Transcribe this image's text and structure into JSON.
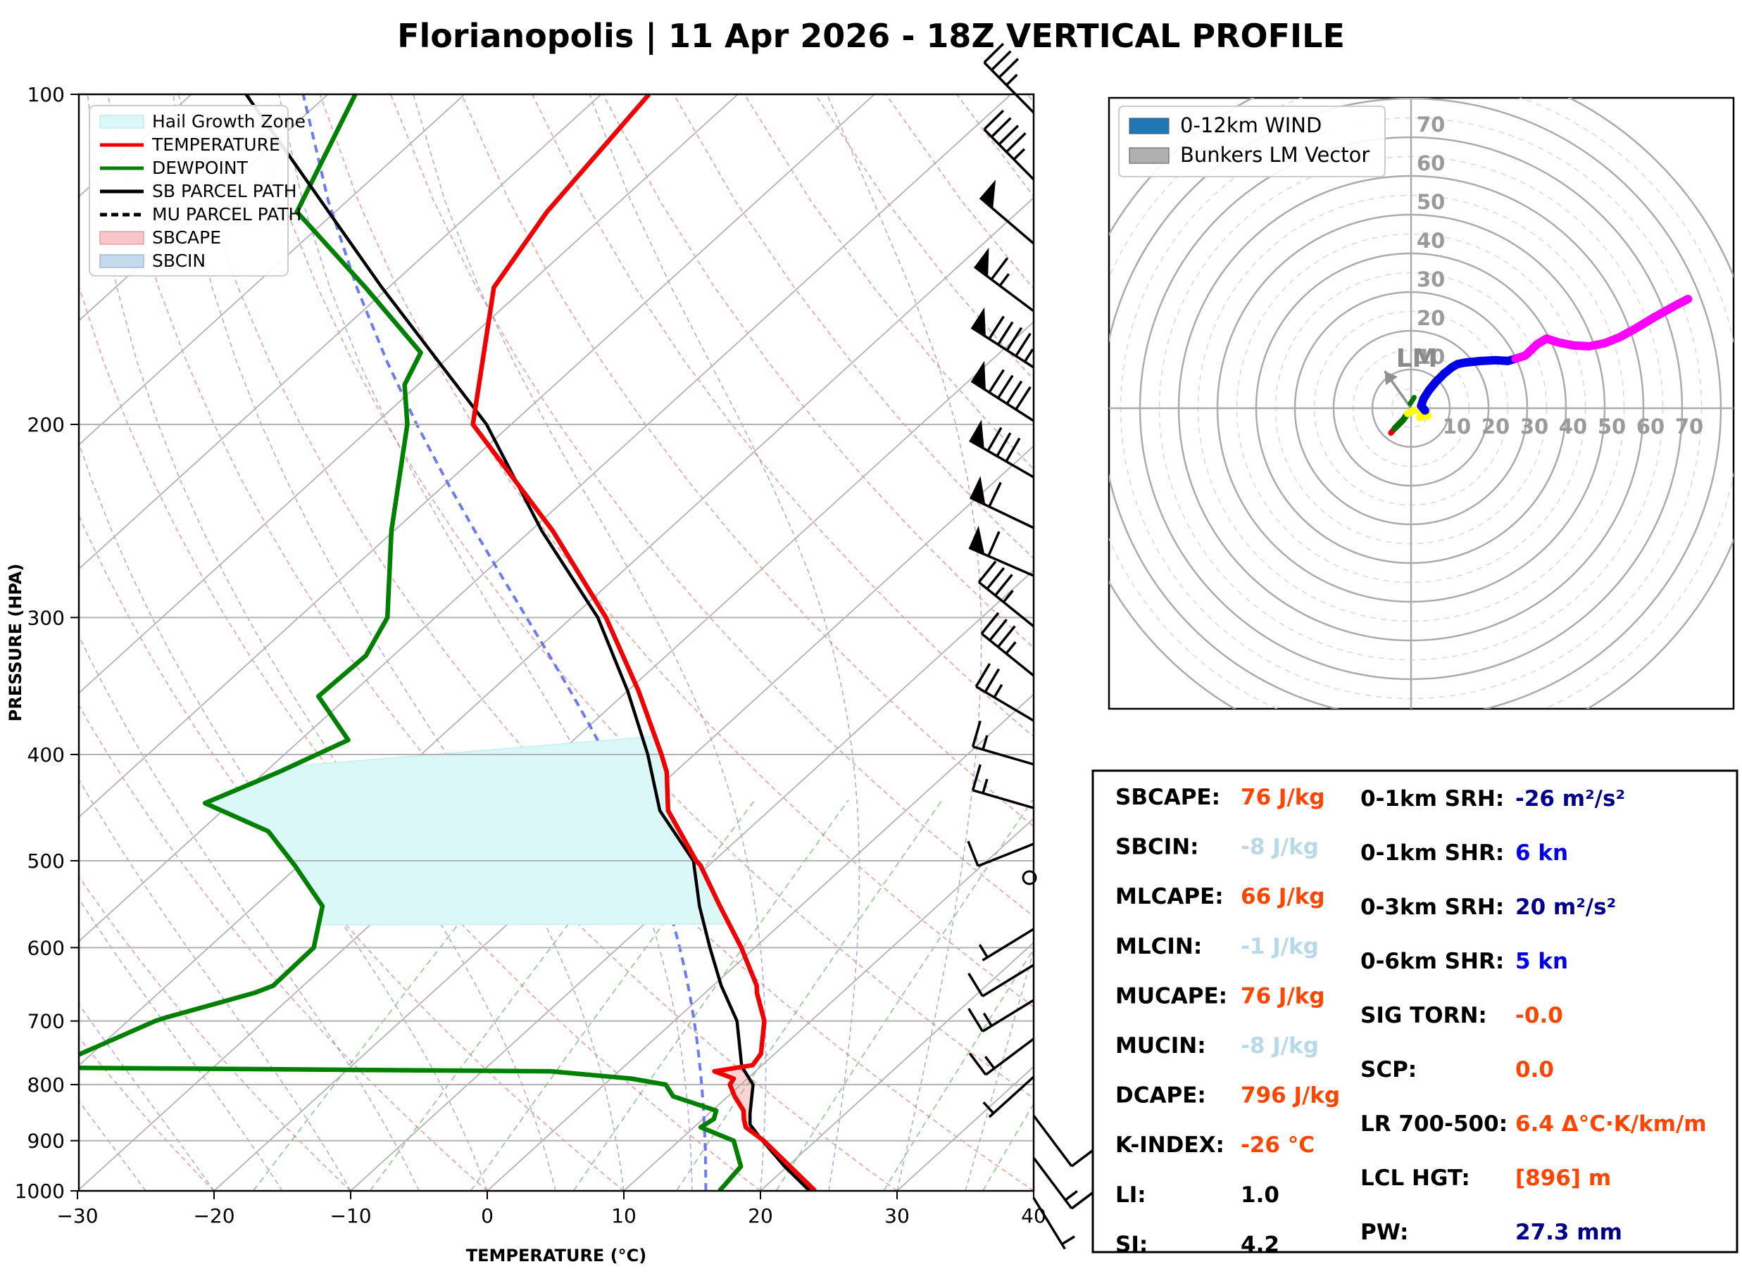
{
  "title": "Florianopolis | 11 Apr 2026 - 18Z VERTICAL PROFILE",
  "chart_data": {
    "type": "skewt-logp-sounding",
    "skewt": {
      "xlabel": "TEMPERATURE (°C)",
      "ylabel": "PRESSURE (HPA)",
      "x_ticks": [
        "−30",
        "−20",
        "−10",
        "0",
        "10",
        "20",
        "30",
        "40"
      ],
      "x_tick_values": [
        -30,
        -20,
        -10,
        0,
        10,
        20,
        30,
        40
      ],
      "p_ticks": [
        100,
        200,
        300,
        400,
        500,
        600,
        700,
        800,
        900,
        1000
      ],
      "xlim": [
        -30,
        40
      ],
      "plim": [
        100,
        1000
      ],
      "legend": [
        {
          "label": "Hail Growth Zone",
          "type": "patch",
          "color": "#dbf8f9",
          "edge": "#bfeef0"
        },
        {
          "label": "TEMPERATURE",
          "type": "line",
          "color": "#f00000",
          "dash": false
        },
        {
          "label": "DEWPOINT",
          "type": "line",
          "color": "#008000",
          "dash": false
        },
        {
          "label": "SB PARCEL PATH",
          "type": "line",
          "color": "#000000",
          "dash": false
        },
        {
          "label": "MU PARCEL PATH",
          "type": "line",
          "color": "#000000",
          "dash": true
        },
        {
          "label": "SBCAPE",
          "type": "patch",
          "color": "#f6c6c9",
          "edge": "#e8a0a5"
        },
        {
          "label": "SBCIN",
          "type": "patch",
          "color": "#c5d8ec",
          "edge": "#9fbcd8"
        }
      ],
      "temperature_c": [
        [
          1000,
          24
        ],
        [
          950,
          20.2
        ],
        [
          900,
          16.2
        ],
        [
          875,
          13.8
        ],
        [
          860,
          13.0
        ],
        [
          845,
          12.3
        ],
        [
          820,
          10.5
        ],
        [
          800,
          9.2
        ],
        [
          790,
          9.0
        ],
        [
          778,
          7.0
        ],
        [
          768,
          9.3
        ],
        [
          750,
          9.0
        ],
        [
          700,
          6.6
        ],
        [
          660,
          3.8
        ],
        [
          650,
          3.2
        ],
        [
          600,
          -1.0
        ],
        [
          550,
          -5.9
        ],
        [
          505,
          -10.6
        ],
        [
          500,
          -11.3
        ],
        [
          450,
          -17.4
        ],
        [
          415,
          -20.6
        ],
        [
          400,
          -22.4
        ],
        [
          350,
          -29.2
        ],
        [
          300,
          -37.5
        ],
        [
          250,
          -48.4
        ],
        [
          200,
          -62.8
        ],
        [
          150,
          -72.3
        ],
        [
          128,
          -74.5
        ],
        [
          100,
          -76.5
        ]
      ],
      "dewpoint_c": [
        [
          1000,
          17
        ],
        [
          950,
          16.6
        ],
        [
          900,
          14.0
        ],
        [
          875,
          10.5
        ],
        [
          860,
          10.8
        ],
        [
          845,
          10.3
        ],
        [
          820,
          6.0
        ],
        [
          800,
          4.5
        ],
        [
          790,
          1.5
        ],
        [
          778,
          -5.0
        ],
        [
          772,
          -42.0
        ],
        [
          700,
          -38.0
        ],
        [
          695,
          -37.5
        ],
        [
          660,
          -33.0
        ],
        [
          650,
          -32.2
        ],
        [
          600,
          -32.3
        ],
        [
          550,
          -35.0
        ],
        [
          505,
          -40.3
        ],
        [
          470,
          -45.0
        ],
        [
          443,
          -51.9
        ],
        [
          415,
          -49.0
        ],
        [
          388,
          -46.5
        ],
        [
          354,
          -52.2
        ],
        [
          325,
          -52.0
        ],
        [
          300,
          -53.5
        ],
        [
          250,
          -60.2
        ],
        [
          200,
          -67.6
        ],
        [
          184,
          -71.0
        ],
        [
          172,
          -72.4
        ],
        [
          150,
          -81.7
        ],
        [
          128,
          -92.8
        ],
        [
          100,
          -98.0
        ]
      ],
      "sb_parcel_c": [
        [
          1000,
          23.6
        ],
        [
          950,
          19.8
        ],
        [
          900,
          16.1
        ],
        [
          870,
          13.9
        ],
        [
          850,
          13.0
        ],
        [
          800,
          10.9
        ],
        [
          770,
          8.6
        ],
        [
          700,
          4.6
        ],
        [
          650,
          0.6
        ],
        [
          600,
          -3.3
        ],
        [
          550,
          -7.4
        ],
        [
          500,
          -11.5
        ],
        [
          450,
          -18.0
        ],
        [
          400,
          -23.4
        ],
        [
          350,
          -30.0
        ],
        [
          300,
          -38.1
        ],
        [
          250,
          -49.2
        ],
        [
          200,
          -61.8
        ],
        [
          150,
          -80.5
        ],
        [
          100,
          -106.0
        ]
      ],
      "hail_zone": {
        "p_bottom": 572,
        "p_top_left": 405,
        "p_top_right": 385
      },
      "cape_zone": {
        "p_top": 772,
        "p_bottom": 878
      },
      "special_moist_adiabat_T0": 16,
      "wind_barbs": [
        {
          "p": 104,
          "y": 160,
          "spd": 35,
          "dx": -0.7,
          "dy": -0.71,
          "len": 100,
          "pen": 0,
          "full": 3,
          "half": 1,
          "flip": 0,
          "calm": false
        },
        {
          "p": 120,
          "y": 255,
          "spd": 45,
          "dx": -0.7,
          "dy": -0.71,
          "len": 100,
          "pen": 0,
          "full": 4,
          "half": 1,
          "flip": 0,
          "calm": false
        },
        {
          "p": 137,
          "y": 346,
          "spd": 50,
          "dx": -0.76,
          "dy": -0.65,
          "len": 100,
          "pen": 1,
          "full": 0,
          "half": 0,
          "flip": 0,
          "calm": false
        },
        {
          "p": 157,
          "y": 442,
          "spd": 65,
          "dx": -0.8,
          "dy": -0.6,
          "len": 105,
          "pen": 1,
          "full": 1,
          "half": 1,
          "flip": 0,
          "calm": false
        },
        {
          "p": 177,
          "y": 522,
          "spd": 95,
          "dx": -0.84,
          "dy": -0.54,
          "len": 105,
          "pen": 1,
          "full": 4,
          "half": 1,
          "flip": 0,
          "calm": false
        },
        {
          "p": 199,
          "y": 598,
          "spd": 90,
          "dx": -0.84,
          "dy": -0.54,
          "len": 105,
          "pen": 1,
          "full": 4,
          "half": 0,
          "flip": 0,
          "calm": false
        },
        {
          "p": 223,
          "y": 678,
          "spd": 80,
          "dx": -0.87,
          "dy": -0.5,
          "len": 105,
          "pen": 1,
          "full": 3,
          "half": 0,
          "flip": 0,
          "calm": false
        },
        {
          "p": 248,
          "y": 750,
          "spd": 60,
          "dx": -0.9,
          "dy": -0.43,
          "len": 100,
          "pen": 1,
          "full": 1,
          "half": 0,
          "flip": 0,
          "calm": false
        },
        {
          "p": 275,
          "y": 818,
          "spd": 60,
          "dx": -0.92,
          "dy": -0.4,
          "len": 100,
          "pen": 1,
          "full": 1,
          "half": 0,
          "flip": 0,
          "calm": false
        },
        {
          "p": 306,
          "y": 890,
          "spd": 35,
          "dx": -0.78,
          "dy": -0.63,
          "len": 100,
          "pen": 0,
          "full": 3,
          "half": 1,
          "flip": 0,
          "calm": false
        },
        {
          "p": 339,
          "y": 960,
          "spd": 35,
          "dx": -0.78,
          "dy": -0.63,
          "len": 95,
          "pen": 0,
          "full": 3,
          "half": 1,
          "flip": 0,
          "calm": false
        },
        {
          "p": 372,
          "y": 1024,
          "spd": 25,
          "dx": -0.86,
          "dy": -0.51,
          "len": 95,
          "pen": 0,
          "full": 2,
          "half": 1,
          "flip": 0,
          "calm": false
        },
        {
          "p": 409,
          "y": 1086,
          "spd": 15,
          "dx": -0.96,
          "dy": -0.28,
          "len": 90,
          "pen": 0,
          "full": 1,
          "half": 1,
          "flip": 0,
          "calm": false
        },
        {
          "p": 447,
          "y": 1148,
          "spd": 15,
          "dx": -0.96,
          "dy": -0.28,
          "len": 90,
          "pen": 0,
          "full": 1,
          "half": 1,
          "flip": 0,
          "calm": false
        },
        {
          "p": 481,
          "y": 1199,
          "spd": 10,
          "dx": -0.93,
          "dy": 0.37,
          "len": 85,
          "pen": 0,
          "full": 1,
          "half": 0,
          "flip": 0,
          "calm": false
        },
        {
          "p": 517,
          "y": 1247,
          "spd": 0,
          "dx": 0,
          "dy": 0,
          "len": 0,
          "pen": 0,
          "full": 0,
          "half": 0,
          "flip": 0,
          "calm": true
        },
        {
          "p": 575,
          "y": 1320,
          "spd": 5,
          "dx": -0.85,
          "dy": 0.52,
          "len": 85,
          "pen": 0,
          "full": 0,
          "half": 1,
          "flip": 0,
          "calm": false
        },
        {
          "p": 621,
          "y": 1371,
          "spd": 10,
          "dx": -0.85,
          "dy": 0.52,
          "len": 85,
          "pen": 0,
          "full": 1,
          "half": 0,
          "flip": 0,
          "calm": false
        },
        {
          "p": 668,
          "y": 1421,
          "spd": 15,
          "dx": -0.85,
          "dy": 0.52,
          "len": 85,
          "pen": 0,
          "full": 1,
          "half": 1,
          "flip": 0,
          "calm": false
        },
        {
          "p": 727,
          "y": 1476,
          "spd": 15,
          "dx": -0.8,
          "dy": 0.6,
          "len": 85,
          "pen": 0,
          "full": 1,
          "half": 1,
          "flip": 0,
          "calm": false
        },
        {
          "p": 784,
          "y": 1530,
          "spd": 5,
          "dx": -0.74,
          "dy": 0.67,
          "len": 85,
          "pen": 0,
          "full": 0,
          "half": 1,
          "flip": 0,
          "calm": false
        },
        {
          "p": 851,
          "y": 1585,
          "spd": 10,
          "dx": 0.6,
          "dy": 0.8,
          "len": 90,
          "pen": 0,
          "full": 1,
          "half": 0,
          "flip": 1,
          "calm": false
        },
        {
          "p": 933,
          "y": 1645,
          "spd": 15,
          "dx": 0.6,
          "dy": 0.8,
          "len": 90,
          "pen": 0,
          "full": 1,
          "half": 1,
          "flip": 1,
          "calm": false
        },
        {
          "p": 1000,
          "y": 1702,
          "spd": 5,
          "dx": 0.52,
          "dy": 0.85,
          "len": 85,
          "pen": 0,
          "full": 0,
          "half": 1,
          "flip": 1,
          "calm": false
        }
      ]
    },
    "hodograph": {
      "legend": [
        {
          "label": "0-12km WIND",
          "color": "#1f77b4"
        },
        {
          "label": "Bunkers LM Vector",
          "color": "#b0b0b0"
        }
      ],
      "ring_step_kn": 10,
      "ring_labels_up": [
        "10",
        "20",
        "30",
        "40",
        "50",
        "60",
        "70"
      ],
      "ring_labels_right": [
        "10",
        "20",
        "30",
        "40",
        "50",
        "60",
        "70"
      ],
      "lm_label": "LM",
      "lm_vector_kn": [
        -6.8,
        9.6
      ],
      "trace_segments": [
        {
          "name": "9-12km",
          "color": "#ff00ff",
          "width": 12,
          "pts": [
            [
              27.0,
              12.8
            ],
            [
              29.5,
              13.6
            ],
            [
              32.5,
              16.5
            ],
            [
              35.0,
              18.0
            ],
            [
              38.0,
              17.0
            ],
            [
              42.0,
              16.2
            ],
            [
              46.0,
              16.0
            ],
            [
              50.0,
              16.8
            ],
            [
              54.0,
              18.4
            ],
            [
              58.0,
              20.6
            ],
            [
              63.0,
              23.6
            ],
            [
              68.0,
              26.4
            ],
            [
              71.5,
              28.2
            ]
          ]
        },
        {
          "name": "6-9km",
          "color": "#0000e6",
          "width": 12,
          "pts": [
            [
              3.6,
              -0.6
            ],
            [
              2.6,
              0.6
            ],
            [
              3.2,
              2.4
            ],
            [
              4.6,
              4.6
            ],
            [
              6.4,
              6.8
            ],
            [
              8.6,
              9.0
            ],
            [
              10.6,
              10.6
            ],
            [
              12.0,
              11.4
            ],
            [
              14.0,
              11.8
            ],
            [
              18.0,
              12.2
            ],
            [
              22.0,
              12.4
            ],
            [
              25.0,
              12.2
            ],
            [
              27.0,
              12.8
            ]
          ]
        },
        {
          "name": "3-6km",
          "color": "#ffff00",
          "width": 10,
          "pts": [
            [
              -0.9,
              -1.4
            ],
            [
              0.6,
              -0.6
            ],
            [
              2.2,
              -0.4
            ],
            [
              3.6,
              -1.2
            ],
            [
              2.2,
              -2.4
            ],
            [
              4.4,
              -2.0
            ],
            [
              3.6,
              -0.6
            ]
          ]
        },
        {
          "name": "1-3km",
          "color": "#007000",
          "width": 9,
          "pts": [
            [
              -4.2,
              -5.2
            ],
            [
              -2.2,
              -3.2
            ],
            [
              -0.9,
              -1.4
            ]
          ]
        },
        {
          "name": "1-3km-spur",
          "color": "#007000",
          "width": 7,
          "pts": [
            [
              -0.2,
              1.2
            ],
            [
              0.8,
              2.8
            ]
          ]
        },
        {
          "name": "0-1km",
          "color": "#e00000",
          "width": 8,
          "pts": [
            [
              -5.2,
              -6.4
            ],
            [
              -4.2,
              -5.2
            ]
          ]
        }
      ]
    }
  },
  "stats": {
    "left": [
      {
        "label": "SBCAPE:",
        "value": "76 J/kg",
        "color": "#ff4500"
      },
      {
        "label": "SBCIN:",
        "value": "-8 J/kg",
        "color": "#b7d9e8"
      },
      {
        "label": "MLCAPE:",
        "value": "66 J/kg",
        "color": "#ff4500"
      },
      {
        "label": "MLCIN:",
        "value": "-1 J/kg",
        "color": "#b7d9e8"
      },
      {
        "label": "MUCAPE:",
        "value": "76 J/kg",
        "color": "#ff4500"
      },
      {
        "label": "MUCIN:",
        "value": "-8 J/kg",
        "color": "#b7d9e8"
      },
      {
        "label": "DCAPE:",
        "value": "796 J/kg",
        "color": "#ff4500"
      },
      {
        "label": "K-INDEX:",
        "value": "-26 °C",
        "color": "#ff4500"
      },
      {
        "label": "LI:",
        "value": "1.0",
        "color": "#000000"
      },
      {
        "label": "SI:",
        "value": "4.2",
        "color": "#000000"
      }
    ],
    "right": [
      {
        "label": "0-1km SRH:",
        "value": "-26 m²/s²",
        "color": "#00008b"
      },
      {
        "label": "0-1km SHR:",
        "value": "6 kn",
        "color": "#0000ee"
      },
      {
        "label": "0-3km SRH:",
        "value": "20 m²/s²",
        "color": "#00008b"
      },
      {
        "label": "0-6km SHR:",
        "value": "5 kn",
        "color": "#0000ee"
      },
      {
        "label": "SIG TORN:",
        "value": "-0.0",
        "color": "#ff4500"
      },
      {
        "label": "SCP:",
        "value": "0.0",
        "color": "#ff4500"
      },
      {
        "label": "LR 700-500:",
        "value": "6.4 Δ°C·K/km/m",
        "color": "#ff4500"
      },
      {
        "label": "LCL HGT:",
        "value": "[896] m",
        "color": "#ff4500"
      },
      {
        "label": "PW:",
        "value": "27.3 mm",
        "color": "#00008b"
      }
    ]
  }
}
